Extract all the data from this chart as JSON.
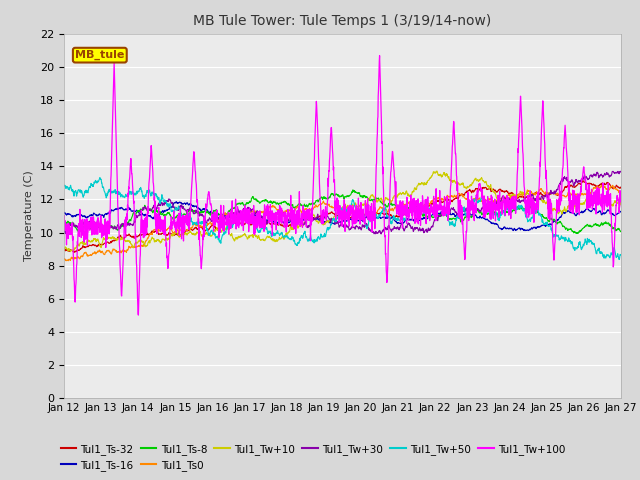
{
  "title": "MB Tule Tower: Tule Temps 1 (3/19/14-now)",
  "ylabel": "Temperature (C)",
  "xlim": [
    0,
    15
  ],
  "ylim": [
    0,
    22
  ],
  "yticks": [
    0,
    2,
    4,
    6,
    8,
    10,
    12,
    14,
    16,
    18,
    20,
    22
  ],
  "xtick_labels": [
    "Jan 12",
    "Jan 13",
    "Jan 14",
    "Jan 15",
    "Jan 16",
    "Jan 17",
    "Jan 18",
    "Jan 19",
    "Jan 20",
    "Jan 21",
    "Jan 22",
    "Jan 23",
    "Jan 24",
    "Jan 25",
    "Jan 26",
    "Jan 27"
  ],
  "legend_label": "MB_tule",
  "series_colors": {
    "Tul1_Ts-32": "#cc0000",
    "Tul1_Ts-16": "#0000bb",
    "Tul1_Ts-8": "#00cc00",
    "Tul1_Ts0": "#ff8800",
    "Tul1_Tw+10": "#cccc00",
    "Tul1_Tw+30": "#8800aa",
    "Tul1_Tw+50": "#00cccc",
    "Tul1_Tw+100": "#ff00ff"
  },
  "fig_facecolor": "#d8d8d8",
  "ax_facecolor": "#ebebeb",
  "grid_color": "#ffffff",
  "spine_color": "#aaaaaa"
}
